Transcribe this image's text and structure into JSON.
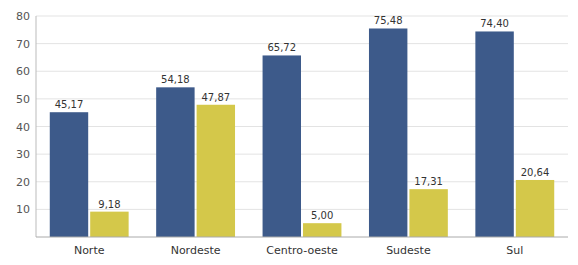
{
  "chart_data": {
    "type": "bar",
    "categories": [
      "Norte",
      "Nordeste",
      "Centro-oeste",
      "Sudeste",
      "Sul"
    ],
    "series": [
      {
        "color": "#3d5a8a",
        "values": [
          45.17,
          54.18,
          65.72,
          75.48,
          74.4
        ],
        "value_labels": [
          "45,17",
          "54,18",
          "65,72",
          "75,48",
          "74,40"
        ]
      },
      {
        "color": "#d4c84a",
        "values": [
          9.18,
          47.87,
          5,
          17.31,
          20.64
        ],
        "value_labels": [
          "9,18",
          "47,87",
          "5,00",
          "17,31",
          "20,64"
        ]
      }
    ],
    "ylim": [
      0,
      80
    ],
    "yticks": [
      10,
      20,
      30,
      40,
      50,
      60,
      70,
      80
    ],
    "grid": true,
    "data_labels": true
  }
}
